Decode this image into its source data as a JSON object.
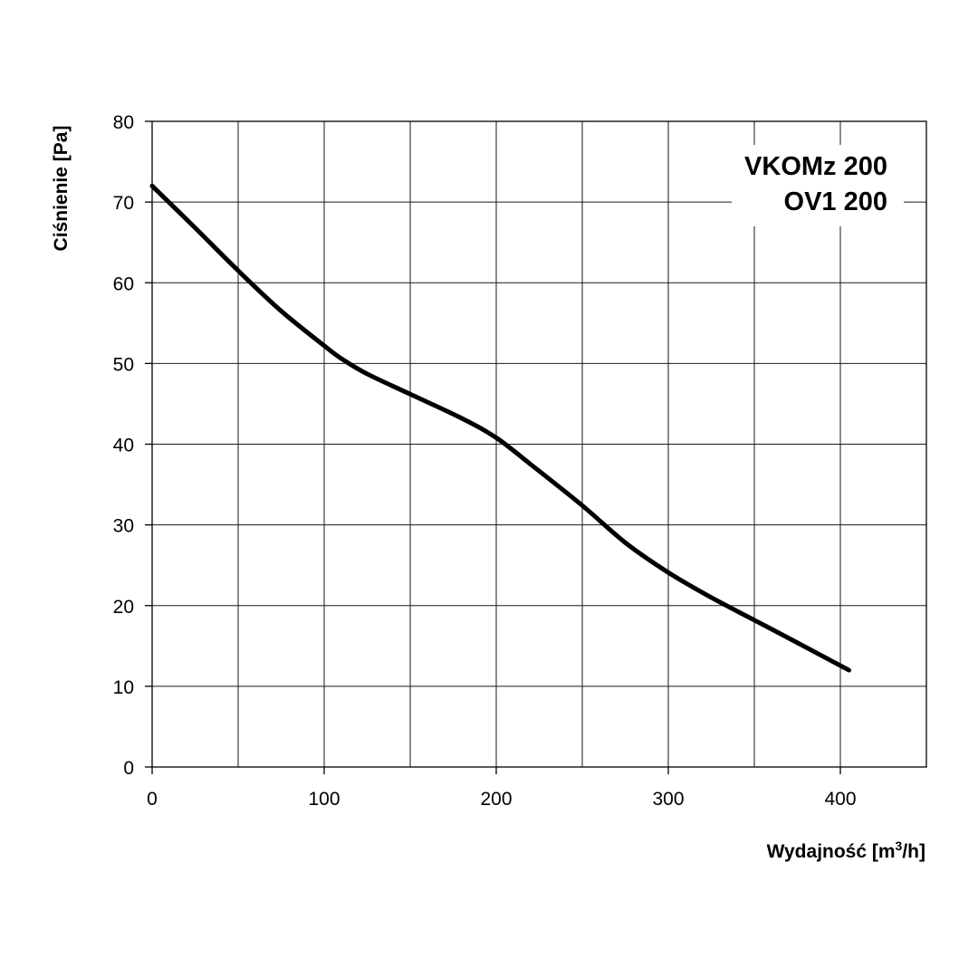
{
  "chart_data": {
    "type": "line",
    "title": "",
    "xlabel": "Wydajność [m³/h]",
    "xlabel_main": "Wydajność [m",
    "xlabel_sup": "3",
    "xlabel_tail": "/h]",
    "ylabel": "Ciśnienie [Pa]",
    "xlim": [
      0,
      450
    ],
    "ylim": [
      0,
      80
    ],
    "x_ticks": [
      0,
      100,
      200,
      300,
      400
    ],
    "y_ticks": [
      0,
      10,
      20,
      30,
      40,
      50,
      60,
      70,
      80
    ],
    "x_grid": [
      0,
      50,
      100,
      150,
      200,
      250,
      300,
      350,
      400,
      450
    ],
    "y_grid": [
      0,
      10,
      20,
      30,
      40,
      50,
      60,
      70,
      80
    ],
    "grid": true,
    "annotations": [
      "VKOMz 200",
      "OV1 200"
    ],
    "series": [
      {
        "x": [
          0,
          25,
          50,
          75,
          100,
          110,
          125,
          150,
          180,
          200,
          220,
          250,
          275,
          300,
          325,
          350,
          375,
          405
        ],
        "y": [
          72,
          66.8,
          61.5,
          56.5,
          52.2,
          50.6,
          48.7,
          46.2,
          43.2,
          40.8,
          37.5,
          32.4,
          27.8,
          24.1,
          21.0,
          18.2,
          15.4,
          12.0
        ]
      }
    ]
  }
}
